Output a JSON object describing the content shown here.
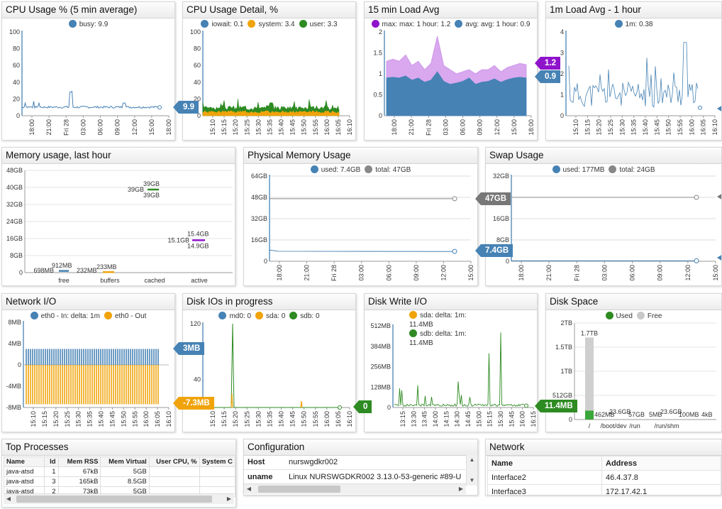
{
  "colors": {
    "blue": "#4682b4",
    "orange": "#f0a30a",
    "green": "#2e8b22",
    "purple": "#9013cc",
    "gray": "#888888",
    "lightgray": "#c8c8c8",
    "dark": "#666666"
  },
  "cpu_usage": {
    "title": "CPU Usage % (5 min average)",
    "legend": [
      {
        "color": "blue",
        "text": "busy: 9.9"
      }
    ],
    "tag": "9.9",
    "yticks": [
      "100",
      "80",
      "60",
      "40",
      "20",
      "0"
    ],
    "xticks": [
      "18:00",
      "21:00",
      "Fri 28",
      "03:00",
      "06:00",
      "09:00",
      "12:00",
      "15:00",
      "18:00"
    ]
  },
  "cpu_detail": {
    "title": "CPU Usage Detail, %",
    "legend": [
      {
        "color": "blue",
        "text": "iowait: 0.1"
      },
      {
        "color": "orange",
        "text": "system: 3.4"
      },
      {
        "color": "green",
        "text": "user: 3.3"
      }
    ],
    "yticks": [
      "100",
      "80",
      "60",
      "40",
      "20",
      "0"
    ],
    "xticks": [
      "15:10",
      "15:15",
      "15:20",
      "15:25",
      "15:30",
      "15:35",
      "15:40",
      "15:45",
      "15:50",
      "15:55",
      "16:00",
      "16:05",
      "16:10"
    ]
  },
  "load15": {
    "title": "15 min Load Avg",
    "legend": [
      {
        "color": "purple",
        "text": "max: max: 1 hour: 1.2"
      },
      {
        "color": "blue",
        "text": "avg: avg: 1 hour: 0.9"
      }
    ],
    "tag_max": "1.2",
    "tag_avg": "0.9",
    "yticks": [
      "2",
      "1.5",
      "1",
      "0.5",
      "0"
    ],
    "xticks": [
      "18:00",
      "21:00",
      "Fri 28",
      "03:00",
      "06:00",
      "09:00",
      "12:00",
      "15:00",
      "18:00"
    ]
  },
  "load1": {
    "title": "1m Load Avg - 1 hour",
    "legend": [
      {
        "color": "blue",
        "text": "1m: 0.38"
      }
    ],
    "yticks": [
      "4",
      "3",
      "2",
      "1",
      "0"
    ],
    "xticks": [
      "15:10",
      "15:15",
      "15:20",
      "15:25",
      "15:30",
      "15:35",
      "15:40",
      "15:45",
      "15:50",
      "15:55",
      "16:00",
      "16:05",
      "16:10"
    ]
  },
  "memory": {
    "title": "Memory usage, last hour",
    "yticks": [
      "48GB",
      "40GB",
      "32GB",
      "24GB",
      "16GB",
      "8GB",
      "0"
    ],
    "categories": [
      "free",
      "buffers",
      "cached",
      "active"
    ],
    "labels": {
      "free_min": "698MB",
      "free_max": "912MB",
      "buffers_min": "232MB",
      "buffers_max": "233MB",
      "cached_min": "39GB",
      "cached_max": "39GB",
      "cached_last": "39GB",
      "active_min": "15.1GB",
      "active_max": "15.4GB",
      "active_last": "14.9GB"
    }
  },
  "phys_mem": {
    "title": "Physical Memory Usage",
    "legend": [
      {
        "color": "blue",
        "text": "used: 7.4GB"
      },
      {
        "color": "gray",
        "text": "total: 47GB"
      }
    ],
    "tag_total": "47GB",
    "tag_used": "7.4GB",
    "yticks": [
      "64GB",
      "48GB",
      "32GB",
      "16GB",
      "0"
    ],
    "xticks": [
      "18:00",
      "21:00",
      "Fri 28",
      "03:00",
      "06:00",
      "09:00",
      "12:00",
      "15:00"
    ]
  },
  "swap": {
    "title": "Swap Usage",
    "legend": [
      {
        "color": "blue",
        "text": "used: 177MB"
      },
      {
        "color": "gray",
        "text": "total: 24GB"
      }
    ],
    "yticks": [
      "32GB",
      "24GB",
      "16GB",
      "8GB",
      "0"
    ],
    "xticks": [
      "18:00",
      "21:00",
      "Fri 28",
      "03:00",
      "06:00",
      "09:00",
      "12:00",
      "15:00"
    ]
  },
  "network": {
    "title": "Network I/O",
    "legend": [
      {
        "color": "blue",
        "text": "eth0 - In: delta: 1m"
      },
      {
        "color": "orange",
        "text": "eth0 - Out"
      }
    ],
    "tag_in": "3MB",
    "tag_out": "-7.3MB",
    "yticks": [
      "8MB",
      "4MB",
      "0",
      "-4MB",
      "-8MB"
    ],
    "xticks": [
      "15:10",
      "15:15",
      "15:20",
      "15:25",
      "15:30",
      "15:35",
      "15:40",
      "15:45",
      "15:50",
      "15:55",
      "16:00",
      "16:05",
      "16:10"
    ]
  },
  "disk_io": {
    "title": "Disk IOs in progress",
    "legend": [
      {
        "color": "blue",
        "text": "md0: 0"
      },
      {
        "color": "orange",
        "text": "sda: 0"
      },
      {
        "color": "green",
        "text": "sdb: 0"
      }
    ],
    "tag": "0",
    "yticks": [
      "120",
      "80",
      "40",
      "0"
    ],
    "xticks": [
      "15:10",
      "15:15",
      "15:20",
      "15:25",
      "15:30",
      "15:35",
      "15:40",
      "15:45",
      "15:50",
      "15:55",
      "16:00",
      "16:05",
      "16:10"
    ]
  },
  "disk_write": {
    "title": "Disk Write I/O",
    "legend": [
      {
        "color": "orange",
        "text": "sda: delta: 1m: 11.4MB"
      },
      {
        "color": "green",
        "text": "sdb: delta: 1m: 11.4MB"
      }
    ],
    "tag": "11.4MB",
    "yticks": [
      "512MB",
      "384MB",
      "256MB",
      "128MB",
      "0"
    ],
    "xticks": [
      "13:15",
      "13:30",
      "13:45",
      "14:00",
      "14:15",
      "14:30",
      "14:45",
      "15:00",
      "15:15",
      "15:30",
      "15:45",
      "16:00",
      "16:15"
    ]
  },
  "disk_space": {
    "title": "Disk Space",
    "legend": [
      {
        "color": "green",
        "text": "Used"
      },
      {
        "color": "lightgray",
        "text": "Free"
      }
    ],
    "yticks": [
      "2TB",
      "1.5TB",
      "1TB",
      "512GB",
      "0"
    ],
    "categories": [
      "/",
      "/boot/dev",
      "/run",
      "/run/shm"
    ],
    "labels": [
      "1.7TB",
      "462MB",
      "23.6GB",
      "57GB",
      "5MB",
      "23.6GB",
      "100MB",
      "4kB"
    ]
  },
  "top_processes": {
    "title": "Top Processes",
    "columns": [
      "Name",
      "Id",
      "Mem RSS",
      "Mem Virtual",
      "User CPU, %",
      "System C"
    ],
    "rows": [
      [
        "java-atsd",
        "1",
        "67kB",
        "5GB",
        "",
        ""
      ],
      [
        "java-atsd",
        "3",
        "165kB",
        "8.5GB",
        "",
        ""
      ],
      [
        "java-atsd",
        "2",
        "73kB",
        "5GB",
        "",
        ""
      ]
    ]
  },
  "configuration": {
    "title": "Configuration",
    "rows": [
      [
        "Host",
        "nurswgdkr002"
      ],
      [
        "uname",
        "Linux NURSWGDKR002 3.13.0-53-generic #89-U"
      ]
    ]
  },
  "network_table": {
    "title": "Network",
    "columns": [
      "Name",
      "Address"
    ],
    "rows": [
      [
        "Interface2",
        "46.4.37.8"
      ],
      [
        "Interface3",
        "172.17.42.1"
      ]
    ]
  }
}
